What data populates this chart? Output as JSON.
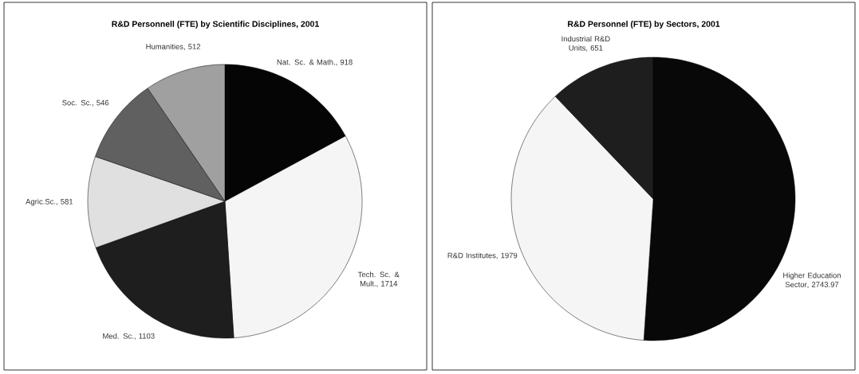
{
  "chart_data": [
    {
      "type": "pie",
      "title": "R&D Personnell (FTE) by Scientific Disciplines, 2001",
      "categories": [
        "Nat. Sc. & Math.",
        "Tech. Sc. & Mult.",
        "Med. Sc.",
        "Agric.Sc.",
        "Soc. Sc.",
        "Humanities"
      ],
      "values": [
        918,
        1714,
        1103,
        581,
        546,
        512
      ],
      "colors": [
        "#050505",
        "#f5f5f5",
        "#1e1e1e",
        "#e0e0e0",
        "#606060",
        "#a0a0a0"
      ],
      "value_labels": [
        ", 918",
        ", 1714",
        ", 1103",
        ", 581",
        ", 546",
        ", 512"
      ]
    },
    {
      "type": "pie",
      "title": "R&D Personnel (FTE) by Sectors, 2001",
      "categories": [
        "Higher Education Sector",
        "R&D Institutes",
        "Industrial R&D Units"
      ],
      "values": [
        2743.97,
        1979,
        651
      ],
      "colors": [
        "#080808",
        "#f5f5f5",
        "#1e1e1e"
      ],
      "value_labels": [
        ", 2743.97",
        ", 1979",
        ", 651"
      ]
    }
  ]
}
